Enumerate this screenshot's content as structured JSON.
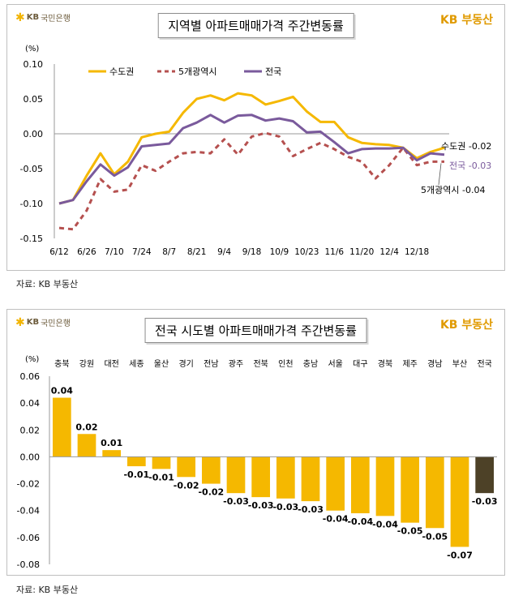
{
  "panel1": {
    "logo_text": "국민은행",
    "logo_kb": "KB",
    "brand": "KB 부동산",
    "title": "지역별 아파트매매가격 주간변동률",
    "source": "자료: KB 부동산"
  },
  "panel2": {
    "logo_text": "국민은행",
    "logo_kb": "KB",
    "brand": "KB 부동산",
    "title": "전국 시도별 아파트매매가격 주간변동률",
    "source": "자료: KB 부동산"
  },
  "chart_data": [
    {
      "type": "line",
      "unit_label": "(%)",
      "ylim": [
        -0.15,
        0.1
      ],
      "yticks": [
        "0.10",
        "0.05",
        "0.00",
        "-0.05",
        "-0.10",
        "-0.15"
      ],
      "x_ticklabels": [
        "6/12",
        "6/26",
        "7/10",
        "7/24",
        "8/7",
        "8/21",
        "9/4",
        "9/18",
        "10/9",
        "10/23",
        "11/6",
        "11/20",
        "12/4",
        "12/18"
      ],
      "x_count": 29,
      "tick_every": 2,
      "legend": "top",
      "series": [
        {
          "name": "수도권",
          "color": "#f5b800",
          "style": "solid",
          "values": [
            -0.1,
            -0.095,
            -0.06,
            -0.028,
            -0.058,
            -0.04,
            -0.005,
            0.0,
            0.003,
            0.03,
            0.05,
            0.055,
            0.048,
            0.058,
            0.055,
            0.042,
            0.047,
            0.053,
            0.032,
            0.017,
            0.017,
            -0.005,
            -0.013,
            -0.015,
            -0.016,
            -0.02,
            -0.035,
            -0.026,
            -0.02
          ]
        },
        {
          "name": "5개광역시",
          "color": "#b5504f",
          "style": "dashed",
          "values": [
            -0.135,
            -0.137,
            -0.11,
            -0.065,
            -0.083,
            -0.08,
            -0.045,
            -0.053,
            -0.04,
            -0.028,
            -0.026,
            -0.028,
            -0.008,
            -0.03,
            -0.004,
            0.001,
            -0.004,
            -0.032,
            -0.022,
            -0.013,
            -0.022,
            -0.033,
            -0.04,
            -0.064,
            -0.045,
            -0.02,
            -0.045,
            -0.04,
            -0.04
          ]
        },
        {
          "name": "전국",
          "color": "#7a5a9c",
          "style": "solid",
          "values": [
            -0.1,
            -0.095,
            -0.068,
            -0.044,
            -0.06,
            -0.048,
            -0.018,
            -0.016,
            -0.014,
            0.008,
            0.016,
            0.027,
            0.016,
            0.026,
            0.027,
            0.019,
            0.022,
            0.018,
            0.002,
            0.003,
            -0.012,
            -0.028,
            -0.022,
            -0.021,
            -0.021,
            -0.02,
            -0.038,
            -0.028,
            -0.03
          ]
        }
      ],
      "end_labels": [
        {
          "series": "수도권",
          "text": "수도권",
          "value": "-0.02"
        },
        {
          "series": "전국",
          "text": "전국",
          "value": "-0.03"
        },
        {
          "series": "5개광역시",
          "text": "5개광역시",
          "value": "-0.04"
        }
      ]
    },
    {
      "type": "bar",
      "unit_label": "(%)",
      "ylim": [
        -0.08,
        0.06
      ],
      "yticks": [
        "0.06",
        "0.04",
        "0.02",
        "0.00",
        "-0.02",
        "-0.04",
        "-0.06",
        "-0.08"
      ],
      "categories": [
        "충북",
        "강원",
        "대전",
        "세종",
        "울산",
        "경기",
        "전남",
        "광주",
        "전북",
        "인천",
        "충남",
        "서울",
        "대구",
        "경북",
        "제주",
        "경남",
        "부산",
        "전국"
      ],
      "values": [
        0.044,
        0.017,
        0.005,
        -0.007,
        -0.009,
        -0.015,
        -0.02,
        -0.027,
        -0.03,
        -0.031,
        -0.033,
        -0.04,
        -0.042,
        -0.044,
        -0.049,
        -0.053,
        -0.067,
        -0.027
      ],
      "data_labels": [
        "0.04",
        "0.02",
        "0.01",
        "-0.01",
        "-0.01",
        "-0.02",
        "-0.02",
        "-0.03",
        "-0.03",
        "-0.03",
        "-0.03",
        "-0.04",
        "-0.04",
        "-0.04",
        "-0.05",
        "-0.05",
        "-0.07",
        "-0.03"
      ],
      "bar_color": "#f5b800",
      "highlight_color": "#4d4127",
      "highlight_category": "전국"
    }
  ]
}
